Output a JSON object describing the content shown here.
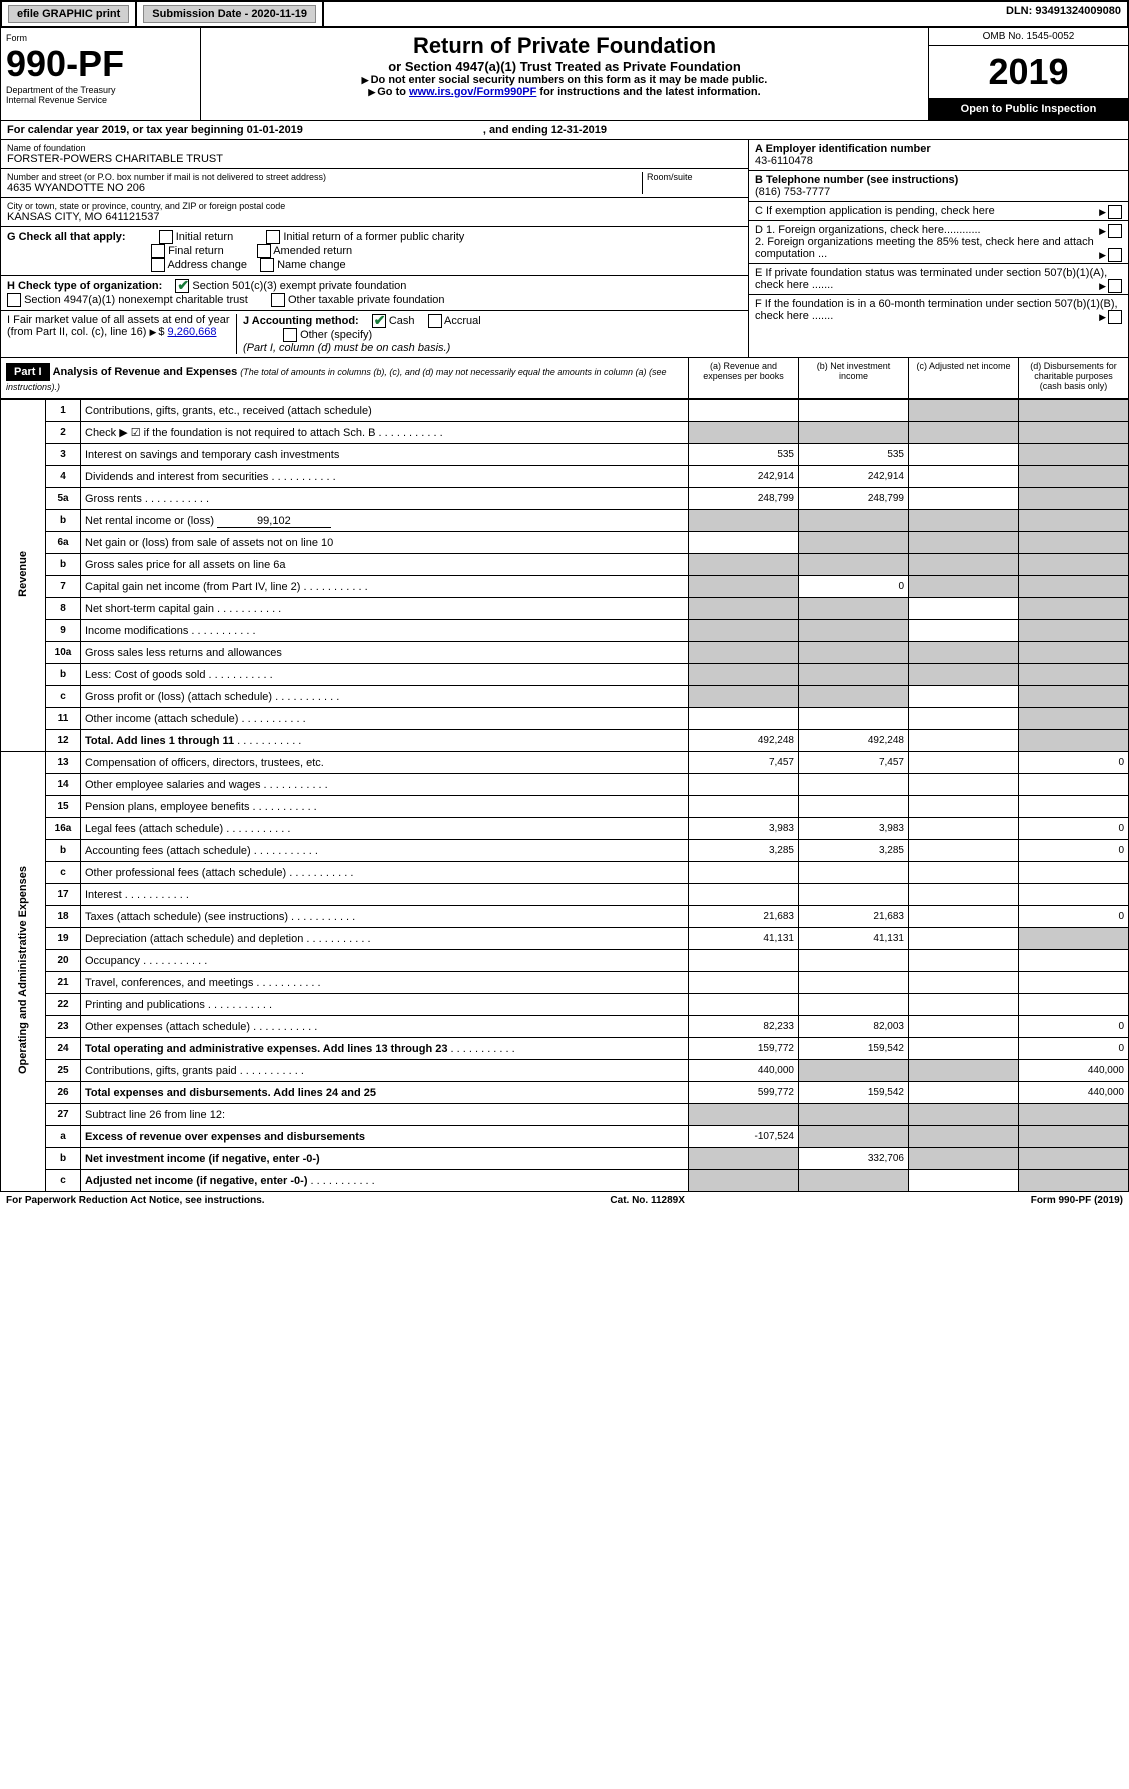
{
  "topbar": {
    "efile": "efile GRAPHIC print",
    "sub_label": "Submission Date - 2020-11-19",
    "dln": "DLN: 93491324009080"
  },
  "header": {
    "form_word": "Form",
    "form_num": "990-PF",
    "dept": "Department of the Treasury",
    "irs": "Internal Revenue Service",
    "title": "Return of Private Foundation",
    "subtitle": "or Section 4947(a)(1) Trust Treated as Private Foundation",
    "instr1": "Do not enter social security numbers on this form as it may be made public.",
    "instr2_pre": "Go to ",
    "instr2_link": "www.irs.gov/Form990PF",
    "instr2_post": " for instructions and the latest information.",
    "omb": "OMB No. 1545-0052",
    "year": "2019",
    "open": "Open to Public Inspection"
  },
  "cal": {
    "line": "For calendar year 2019, or tax year beginning 01-01-2019",
    "end": ", and ending 12-31-2019"
  },
  "info": {
    "name_label": "Name of foundation",
    "name": "FORSTER-POWERS CHARITABLE TRUST",
    "addr_label": "Number and street (or P.O. box number if mail is not delivered to street address)",
    "addr": "4635 WYANDOTTE NO 206",
    "room_label": "Room/suite",
    "city_label": "City or town, state or province, country, and ZIP or foreign postal code",
    "city": "KANSAS CITY, MO  641121537",
    "a_label": "A Employer identification number",
    "a_val": "43-6110478",
    "b_label": "B Telephone number (see instructions)",
    "b_val": "(816) 753-7777",
    "c_label": "C If exemption application is pending, check here",
    "d1": "D 1. Foreign organizations, check here............",
    "d2": "2. Foreign organizations meeting the 85% test, check here and attach computation ...",
    "e_label": "E  If private foundation status was terminated under section 507(b)(1)(A), check here .......",
    "f_label": "F  If the foundation is in a 60-month termination under section 507(b)(1)(B), check here .......",
    "g_label": "G Check all that apply:",
    "g_opts": [
      "Initial return",
      "Initial return of a former public charity",
      "Final return",
      "Amended return",
      "Address change",
      "Name change"
    ],
    "h_label": "H Check type of organization:",
    "h_opt1": "Section 501(c)(3) exempt private foundation",
    "h_opt2": "Section 4947(a)(1) nonexempt charitable trust",
    "h_opt3": "Other taxable private foundation",
    "i_label": "I Fair market value of all assets at end of year (from Part II, col. (c), line 16)",
    "i_val": "9,260,668",
    "j_label": "J Accounting method:",
    "j_cash": "Cash",
    "j_accrual": "Accrual",
    "j_other": "Other (specify)",
    "j_note": "(Part I, column (d) must be on cash basis.)"
  },
  "part1": {
    "label": "Part I",
    "title": "Analysis of Revenue and Expenses",
    "subtitle": "(The total of amounts in columns (b), (c), and (d) may not necessarily equal the amounts in column (a) (see instructions).)",
    "cols": [
      "(a)  Revenue and expenses per books",
      "(b)  Net investment income",
      "(c)  Adjusted net income",
      "(d)  Disbursements for charitable purposes (cash basis only)"
    ]
  },
  "sections": {
    "revenue": "Revenue",
    "expenses": "Operating and Administrative Expenses"
  },
  "lines": [
    {
      "n": "1",
      "d": "Contributions, gifts, grants, etc., received (attach schedule)",
      "a": "",
      "b": "",
      "c": "s",
      "dd": "s"
    },
    {
      "n": "2",
      "d": "Check ▶ ☑ if the foundation is not required to attach Sch. B",
      "a": "s",
      "b": "s",
      "c": "s",
      "dd": "s",
      "dots": 1
    },
    {
      "n": "3",
      "d": "Interest on savings and temporary cash investments",
      "a": "535",
      "b": "535",
      "c": "",
      "dd": "s"
    },
    {
      "n": "4",
      "d": "Dividends and interest from securities",
      "a": "242,914",
      "b": "242,914",
      "c": "",
      "dd": "s",
      "dots": 1
    },
    {
      "n": "5a",
      "d": "Gross rents",
      "a": "248,799",
      "b": "248,799",
      "c": "",
      "dd": "s",
      "dots": 1
    },
    {
      "n": "b",
      "d": "Net rental income or (loss)",
      "inline": "99,102",
      "a": "s",
      "b": "s",
      "c": "s",
      "dd": "s"
    },
    {
      "n": "6a",
      "d": "Net gain or (loss) from sale of assets not on line 10",
      "a": "",
      "b": "s",
      "c": "s",
      "dd": "s"
    },
    {
      "n": "b",
      "d": "Gross sales price for all assets on line 6a",
      "a": "s",
      "b": "s",
      "c": "s",
      "dd": "s"
    },
    {
      "n": "7",
      "d": "Capital gain net income (from Part IV, line 2)",
      "a": "s",
      "b": "0",
      "c": "s",
      "dd": "s",
      "dots": 1
    },
    {
      "n": "8",
      "d": "Net short-term capital gain",
      "a": "s",
      "b": "s",
      "c": "",
      "dd": "s",
      "dots": 1
    },
    {
      "n": "9",
      "d": "Income modifications",
      "a": "s",
      "b": "s",
      "c": "",
      "dd": "s",
      "dots": 1
    },
    {
      "n": "10a",
      "d": "Gross sales less returns and allowances",
      "a": "s",
      "b": "s",
      "c": "s",
      "dd": "s"
    },
    {
      "n": "b",
      "d": "Less: Cost of goods sold",
      "a": "s",
      "b": "s",
      "c": "s",
      "dd": "s",
      "dots": 1
    },
    {
      "n": "c",
      "d": "Gross profit or (loss) (attach schedule)",
      "a": "s",
      "b": "s",
      "c": "",
      "dd": "s",
      "dots": 1
    },
    {
      "n": "11",
      "d": "Other income (attach schedule)",
      "a": "",
      "b": "",
      "c": "",
      "dd": "s",
      "dots": 1
    },
    {
      "n": "12",
      "d": "Total. Add lines 1 through 11",
      "bold": 1,
      "a": "492,248",
      "b": "492,248",
      "c": "",
      "dd": "s",
      "dots": 1
    }
  ],
  "exp_lines": [
    {
      "n": "13",
      "d": "Compensation of officers, directors, trustees, etc.",
      "a": "7,457",
      "b": "7,457",
      "c": "",
      "dd": "0"
    },
    {
      "n": "14",
      "d": "Other employee salaries and wages",
      "a": "",
      "b": "",
      "c": "",
      "dd": "",
      "dots": 1
    },
    {
      "n": "15",
      "d": "Pension plans, employee benefits",
      "a": "",
      "b": "",
      "c": "",
      "dd": "",
      "dots": 1
    },
    {
      "n": "16a",
      "d": "Legal fees (attach schedule)",
      "a": "3,983",
      "b": "3,983",
      "c": "",
      "dd": "0",
      "dots": 1
    },
    {
      "n": "b",
      "d": "Accounting fees (attach schedule)",
      "a": "3,285",
      "b": "3,285",
      "c": "",
      "dd": "0",
      "dots": 1
    },
    {
      "n": "c",
      "d": "Other professional fees (attach schedule)",
      "a": "",
      "b": "",
      "c": "",
      "dd": "",
      "dots": 1
    },
    {
      "n": "17",
      "d": "Interest",
      "a": "",
      "b": "",
      "c": "",
      "dd": "",
      "dots": 1
    },
    {
      "n": "18",
      "d": "Taxes (attach schedule) (see instructions)",
      "a": "21,683",
      "b": "21,683",
      "c": "",
      "dd": "0",
      "dots": 1
    },
    {
      "n": "19",
      "d": "Depreciation (attach schedule) and depletion",
      "a": "41,131",
      "b": "41,131",
      "c": "",
      "dd": "s",
      "dots": 1
    },
    {
      "n": "20",
      "d": "Occupancy",
      "a": "",
      "b": "",
      "c": "",
      "dd": "",
      "dots": 1
    },
    {
      "n": "21",
      "d": "Travel, conferences, and meetings",
      "a": "",
      "b": "",
      "c": "",
      "dd": "",
      "dots": 1
    },
    {
      "n": "22",
      "d": "Printing and publications",
      "a": "",
      "b": "",
      "c": "",
      "dd": "",
      "dots": 1
    },
    {
      "n": "23",
      "d": "Other expenses (attach schedule)",
      "a": "82,233",
      "b": "82,003",
      "c": "",
      "dd": "0",
      "dots": 1
    },
    {
      "n": "24",
      "d": "Total operating and administrative expenses. Add lines 13 through 23",
      "bold": 1,
      "a": "159,772",
      "b": "159,542",
      "c": "",
      "dd": "0",
      "dots": 1
    },
    {
      "n": "25",
      "d": "Contributions, gifts, grants paid",
      "a": "440,000",
      "b": "s",
      "c": "s",
      "dd": "440,000",
      "dots": 1
    },
    {
      "n": "26",
      "d": "Total expenses and disbursements. Add lines 24 and 25",
      "bold": 1,
      "a": "599,772",
      "b": "159,542",
      "c": "",
      "dd": "440,000"
    },
    {
      "n": "27",
      "d": "Subtract line 26 from line 12:",
      "a": "s",
      "b": "s",
      "c": "s",
      "dd": "s"
    },
    {
      "n": "a",
      "d": "Excess of revenue over expenses and disbursements",
      "bold": 1,
      "a": "-107,524",
      "b": "s",
      "c": "s",
      "dd": "s"
    },
    {
      "n": "b",
      "d": "Net investment income (if negative, enter -0-)",
      "bold": 1,
      "a": "s",
      "b": "332,706",
      "c": "s",
      "dd": "s"
    },
    {
      "n": "c",
      "d": "Adjusted net income (if negative, enter -0-)",
      "bold": 1,
      "a": "s",
      "b": "s",
      "c": "",
      "dd": "s",
      "dots": 1
    }
  ],
  "footer": {
    "left": "For Paperwork Reduction Act Notice, see instructions.",
    "mid": "Cat. No. 11289X",
    "right": "Form 990-PF (2019)"
  }
}
